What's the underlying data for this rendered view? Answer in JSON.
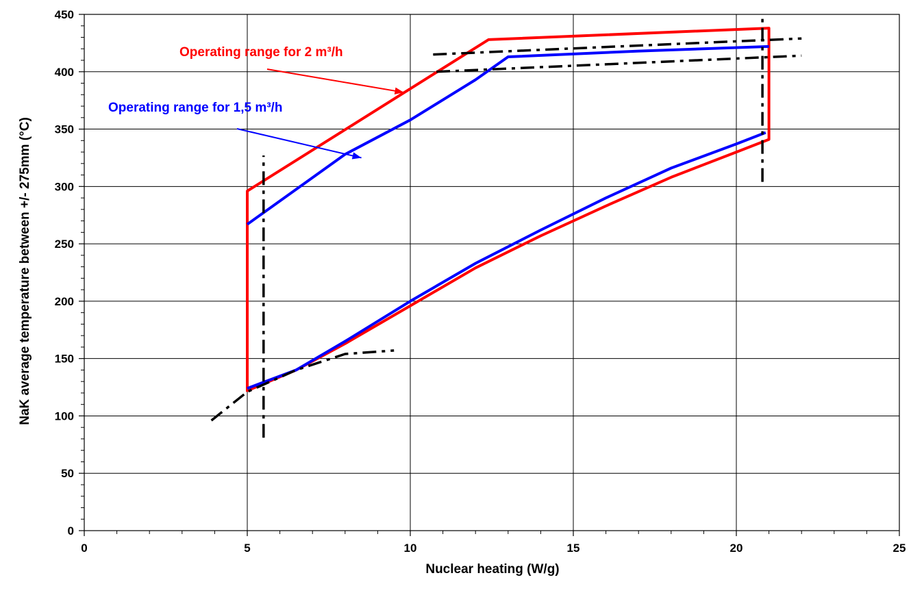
{
  "chart_data": {
    "type": "line",
    "xlabel": "Nuclear heating (W/g)",
    "ylabel": "NaK average temperature between +/- 275mm (°C)",
    "xlim": [
      0,
      25
    ],
    "ylim": [
      0,
      450
    ],
    "xticks": [
      0,
      5,
      10,
      15,
      20,
      25
    ],
    "yticks": [
      0,
      50,
      100,
      150,
      200,
      250,
      300,
      350,
      400,
      450
    ],
    "grid": true,
    "annotations": [
      {
        "text": "Operating range for 2 m³/h",
        "color": "#ff0000",
        "arrow_to": [
          9.8,
          382
        ]
      },
      {
        "text": "Operating range for 1,5 m³/h",
        "color": "#0000ff",
        "arrow_to": [
          8.5,
          325
        ]
      }
    ],
    "series": [
      {
        "color": "#ff0000",
        "style": "solid",
        "x": [
          5.0,
          5.0,
          12.4,
          21.0,
          21.0,
          20.0,
          18.0,
          16.0,
          14.0,
          12.0,
          10.0,
          8.0,
          6.5,
          5.0,
          5.0
        ],
        "y": [
          121,
          296,
          428,
          438,
          341,
          330,
          308,
          283,
          257,
          229,
          196,
          163,
          140,
          122,
          121
        ]
      },
      {
        "color": "#0000ff",
        "style": "solid",
        "x": [
          5.0,
          6.5,
          8.0,
          10.0,
          12.0,
          14.0,
          16.0,
          18.0,
          20.0,
          20.9
        ],
        "y": [
          124,
          140,
          165,
          200,
          233,
          262,
          290,
          316,
          337,
          347
        ]
      },
      {
        "color": "#0000ff",
        "style": "solid",
        "x": [
          5.0,
          8.0,
          10.0,
          12.0,
          13.0,
          17.0,
          21.0
        ],
        "y": [
          267,
          328,
          358,
          393,
          413,
          418,
          422
        ]
      },
      {
        "color": "#000000",
        "style": "dashdot",
        "x": [
          5.5,
          5.5
        ],
        "y": [
          81,
          327
        ]
      },
      {
        "color": "#000000",
        "style": "dashdot",
        "x": [
          20.8,
          20.8
        ],
        "y": [
          304,
          450
        ]
      },
      {
        "color": "#000000",
        "style": "dashdot",
        "x": [
          3.9,
          5.0,
          6.5,
          8.0,
          9.5
        ],
        "y": [
          96,
          121,
          140,
          154,
          157
        ]
      },
      {
        "color": "#000000",
        "style": "dashdot",
        "x": [
          10.7,
          22.0
        ],
        "y": [
          415,
          429
        ]
      },
      {
        "color": "#000000",
        "style": "dashdot",
        "x": [
          10.8,
          22.0
        ],
        "y": [
          400,
          414
        ]
      }
    ]
  }
}
